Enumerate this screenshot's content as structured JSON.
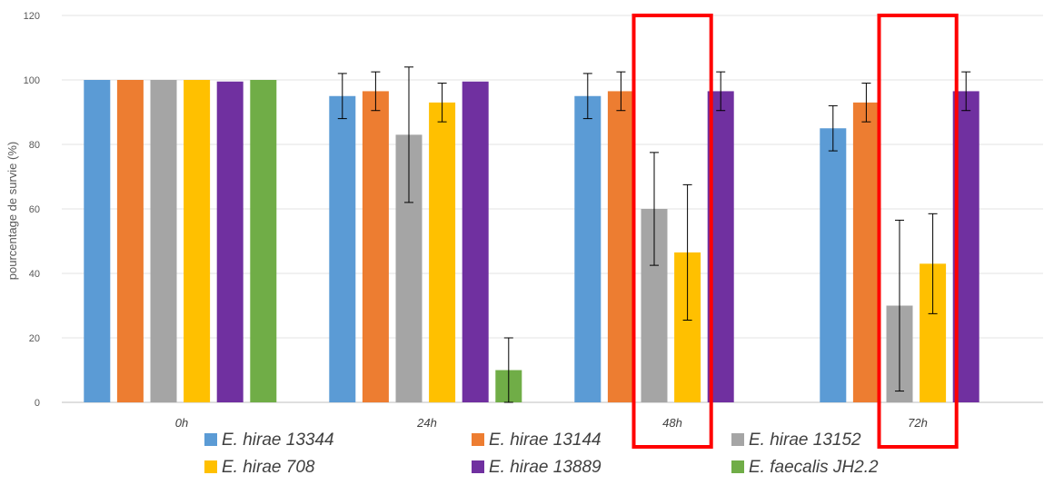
{
  "chart_data": {
    "type": "bar",
    "title": "",
    "xlabel": "",
    "ylabel": "pourcentage de survie (%)",
    "ylim": [
      0,
      120
    ],
    "yticks": [
      0,
      20,
      40,
      60,
      80,
      100,
      120
    ],
    "grid": true,
    "legend_position": "bottom",
    "categories": [
      "0h",
      "24h",
      "48h",
      "72h"
    ],
    "series": [
      {
        "name": "E. hirae 13344",
        "color": "#5b9bd5",
        "values": [
          100,
          95,
          95,
          85
        ],
        "errors": [
          0,
          7,
          7,
          7
        ]
      },
      {
        "name": "E. hirae 13144",
        "color": "#ed7d31",
        "values": [
          100,
          96.5,
          96.5,
          93
        ],
        "errors": [
          0,
          6,
          6,
          6
        ]
      },
      {
        "name": "E. hirae 13152",
        "color": "#a5a5a5",
        "values": [
          100,
          83,
          60,
          30
        ],
        "errors": [
          0,
          21,
          17.5,
          26.5
        ]
      },
      {
        "name": "E. hirae 708",
        "color": "#ffc000",
        "values": [
          100,
          93,
          46.5,
          43
        ],
        "errors": [
          0,
          6,
          21,
          15.5
        ]
      },
      {
        "name": "E. hirae 13889",
        "color": "#7030a0",
        "values": [
          99.5,
          99.5,
          96.5,
          96.5
        ],
        "errors": [
          0,
          0,
          6,
          6
        ]
      },
      {
        "name": "E. faecalis JH2.2",
        "color": "#70ad47",
        "values": [
          100,
          10,
          null,
          null
        ],
        "errors": [
          0,
          10,
          null,
          null
        ]
      }
    ],
    "highlight": {
      "categories": [
        "48h",
        "72h"
      ],
      "color": "#ff0000"
    }
  }
}
